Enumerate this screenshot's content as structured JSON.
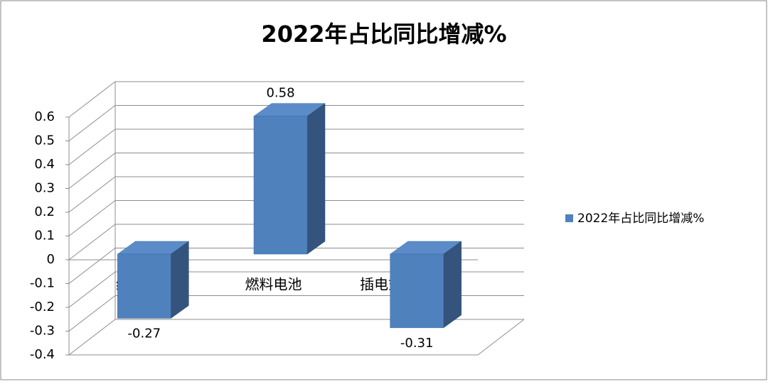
{
  "chart_data": {
    "type": "bar3d",
    "title": "2022年占比同比增减%",
    "categories": [
      "纯电动",
      "燃料电池",
      "插电式混合动力"
    ],
    "series": [
      {
        "name": "2022年占比同比增减%",
        "color": "#4f81bd",
        "values": [
          -0.27,
          0.58,
          -0.31
        ]
      }
    ],
    "ylim": [
      -0.4,
      0.6
    ],
    "yticks": [
      -0.4,
      -0.3,
      -0.2,
      -0.1,
      0,
      0.1,
      0.2,
      0.3,
      0.4,
      0.5,
      0.6
    ],
    "grid": true,
    "legend": "right"
  }
}
